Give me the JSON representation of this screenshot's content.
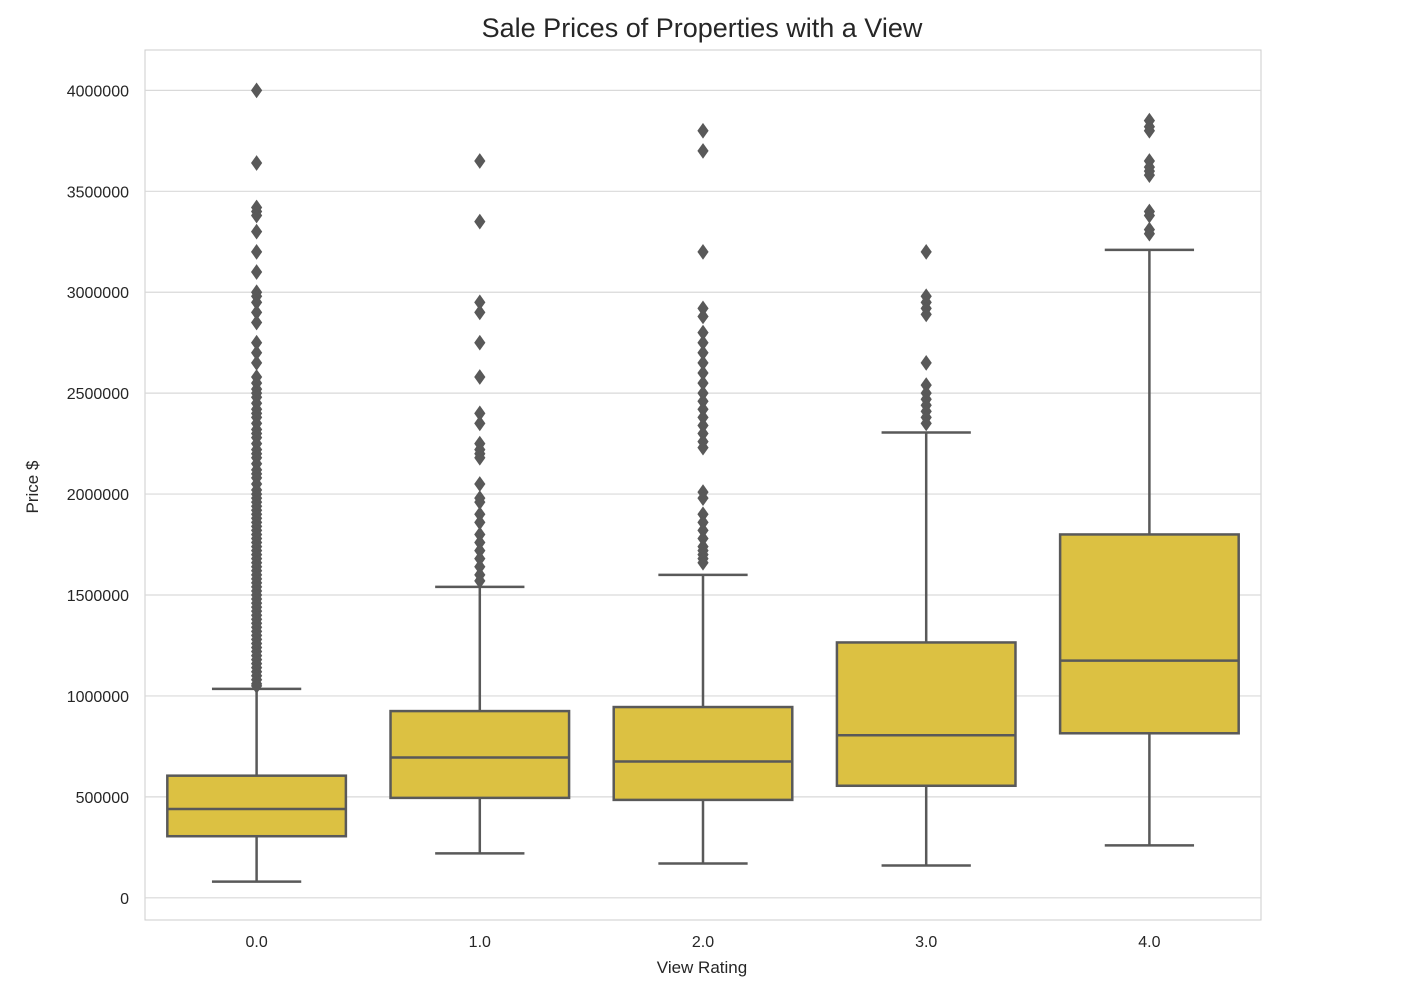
{
  "chart_data": {
    "type": "box",
    "title": "Sale Prices of Properties with a View",
    "xlabel": "View Rating",
    "ylabel": "Price $",
    "categories": [
      "0.0",
      "1.0",
      "2.0",
      "3.0",
      "4.0"
    ],
    "y_ticks": [
      "0",
      "500000",
      "1000000",
      "1500000",
      "2000000",
      "2500000",
      "3000000",
      "3500000",
      "4000000"
    ],
    "ylim": [
      -110000,
      4200000
    ],
    "grid": true,
    "legend": "none",
    "box_color": "#dcc142",
    "line_color": "#595959",
    "boxes": [
      {
        "category": "0.0",
        "whisker_low": 80000,
        "q1": 305000,
        "median": 440000,
        "q3": 605000,
        "whisker_high": 1035000,
        "outliers": [
          4000000,
          3640000,
          3420000,
          3400000,
          3380000,
          3300000,
          3200000,
          3100000,
          3000000,
          2980000,
          2950000,
          2900000,
          2850000,
          2750000,
          2700000,
          2650000,
          2580000,
          2550000,
          2520000,
          2500000,
          2480000,
          2450000,
          2420000,
          2400000,
          2380000,
          2350000,
          2320000,
          2300000,
          2280000,
          2250000,
          2220000,
          2200000,
          2180000,
          2150000,
          2120000,
          2100000,
          2080000,
          2050000,
          2020000,
          2000000,
          1980000,
          1960000,
          1940000,
          1920000,
          1900000,
          1880000,
          1860000,
          1840000,
          1820000,
          1800000,
          1780000,
          1760000,
          1740000,
          1720000,
          1700000,
          1680000,
          1660000,
          1640000,
          1620000,
          1600000,
          1580000,
          1560000,
          1540000,
          1520000,
          1500000,
          1480000,
          1460000,
          1440000,
          1420000,
          1400000,
          1380000,
          1360000,
          1340000,
          1320000,
          1300000,
          1280000,
          1260000,
          1240000,
          1220000,
          1200000,
          1180000,
          1160000,
          1140000,
          1120000,
          1100000,
          1080000,
          1060000,
          1050000
        ]
      },
      {
        "category": "1.0",
        "whisker_low": 220000,
        "q1": 495000,
        "median": 695000,
        "q3": 925000,
        "whisker_high": 1540000,
        "outliers": [
          3650000,
          3350000,
          2950000,
          2900000,
          2750000,
          2580000,
          2400000,
          2350000,
          2250000,
          2220000,
          2200000,
          2180000,
          2050000,
          1980000,
          1960000,
          1900000,
          1860000,
          1800000,
          1760000,
          1720000,
          1680000,
          1640000,
          1600000,
          1570000
        ]
      },
      {
        "category": "2.0",
        "whisker_low": 170000,
        "q1": 485000,
        "median": 675000,
        "q3": 945000,
        "whisker_high": 1600000,
        "outliers": [
          3800000,
          3700000,
          3200000,
          2920000,
          2880000,
          2800000,
          2750000,
          2700000,
          2650000,
          2600000,
          2550000,
          2500000,
          2460000,
          2420000,
          2380000,
          2340000,
          2300000,
          2260000,
          2230000,
          2010000,
          1980000,
          1900000,
          1860000,
          1820000,
          1780000,
          1740000,
          1720000,
          1700000,
          1680000,
          1660000
        ]
      },
      {
        "category": "3.0",
        "whisker_low": 160000,
        "q1": 555000,
        "median": 805000,
        "q3": 1265000,
        "whisker_high": 2305000,
        "outliers": [
          3200000,
          2980000,
          2950000,
          2920000,
          2890000,
          2650000,
          2540000,
          2500000,
          2470000,
          2440000,
          2410000,
          2380000,
          2350000
        ]
      },
      {
        "category": "4.0",
        "whisker_low": 260000,
        "q1": 815000,
        "median": 1175000,
        "q3": 1800000,
        "whisker_high": 3210000,
        "outliers": [
          3850000,
          3820000,
          3800000,
          3650000,
          3620000,
          3600000,
          3580000,
          3400000,
          3380000,
          3310000,
          3290000
        ]
      }
    ]
  }
}
